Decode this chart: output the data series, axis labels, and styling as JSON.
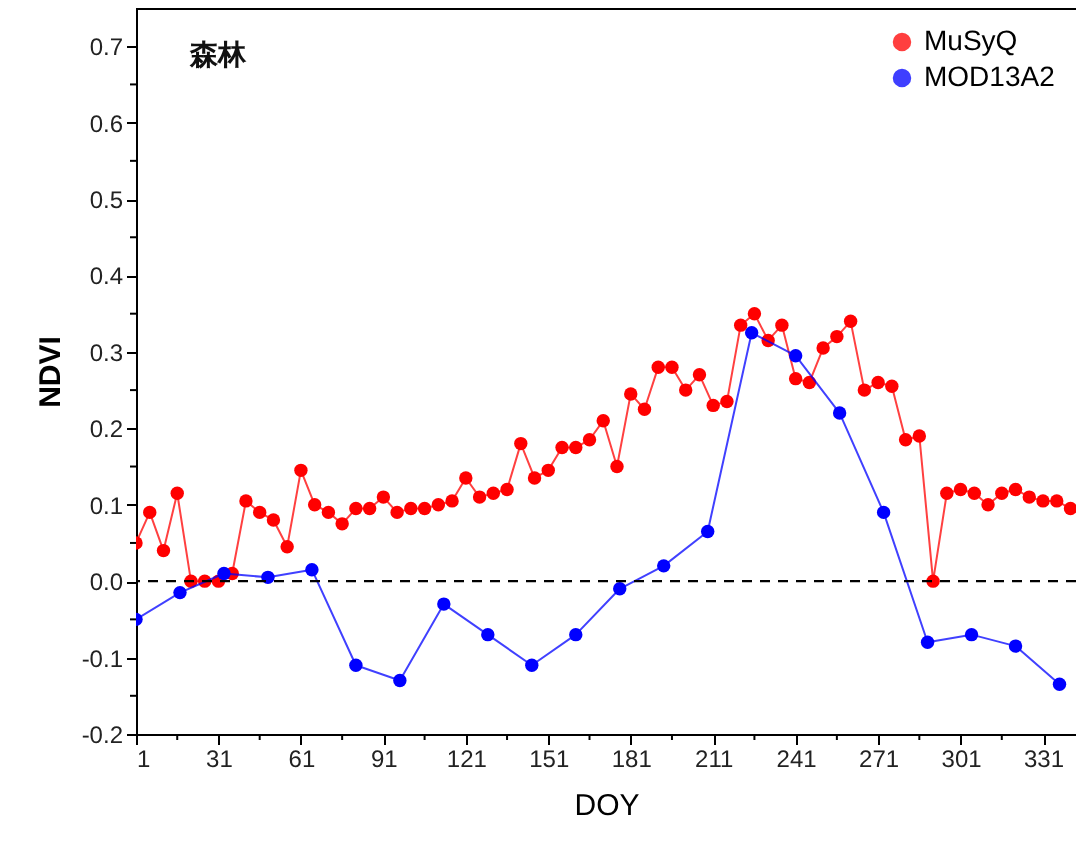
{
  "chart_data": {
    "type": "line",
    "xlabel": "DOY",
    "ylabel": "NDVI",
    "annotations": [
      "森林"
    ],
    "xlim": [
      1,
      343
    ],
    "xticks": [
      1,
      {
        "value": 16,
        "label": null
      },
      31,
      {
        "value": 46,
        "label": null
      },
      61,
      {
        "value": 76,
        "label": null
      },
      91,
      {
        "value": 106,
        "label": null
      },
      121,
      {
        "value": 136,
        "label": null
      },
      151,
      {
        "value": 166,
        "label": null
      },
      181,
      {
        "value": 196,
        "label": null
      },
      211,
      {
        "value": 226,
        "label": null
      },
      241,
      {
        "value": 256,
        "label": null
      },
      271,
      {
        "value": 286,
        "label": null
      },
      301,
      {
        "value": 316,
        "label": null
      },
      331
    ],
    "ylim": [
      -0.2,
      0.75
    ],
    "yticks": [
      -0.2,
      {
        "value": -0.15,
        "label": null
      },
      -0.1,
      {
        "value": -0.05,
        "label": null
      },
      {
        "value": 0,
        "label": "0.0"
      },
      {
        "value": 0.05,
        "label": null
      },
      0.1,
      {
        "value": 0.15,
        "label": null
      },
      0.2,
      {
        "value": 0.25,
        "label": null
      },
      0.3,
      {
        "value": 0.35,
        "label": null
      },
      0.4,
      {
        "value": 0.45,
        "label": null
      },
      0.5,
      {
        "value": 0.55,
        "label": null
      },
      0.6,
      {
        "value": 0.65,
        "label": null
      },
      0.7
    ],
    "legend": "top right",
    "marker": "circle",
    "line_style": "solid",
    "ref_lines": [
      {
        "axis": "y",
        "value": 0,
        "color": "#000000",
        "line_style": "dashed"
      }
    ],
    "series": [
      {
        "name": "MuSyQ",
        "color": "#ff0000",
        "x": [
          1,
          6,
          11,
          16,
          21,
          26,
          31,
          36,
          41,
          46,
          51,
          56,
          61,
          66,
          71,
          76,
          81,
          86,
          91,
          96,
          101,
          106,
          111,
          116,
          121,
          126,
          131,
          136,
          141,
          146,
          151,
          156,
          161,
          166,
          171,
          176,
          181,
          186,
          191,
          196,
          201,
          206,
          211,
          216,
          221,
          226,
          231,
          236,
          241,
          246,
          251,
          256,
          261,
          266,
          271,
          276,
          281,
          286,
          291,
          296,
          301,
          306,
          311,
          316,
          321,
          326,
          331,
          336,
          341
        ],
        "values": [
          0.05,
          0.09,
          0.04,
          0.115,
          0.0,
          0.0,
          0.0,
          0.01,
          0.105,
          0.09,
          0.08,
          0.045,
          0.145,
          0.1,
          0.09,
          0.075,
          0.095,
          0.095,
          0.11,
          0.09,
          0.095,
          0.095,
          0.1,
          0.105,
          0.135,
          0.11,
          0.115,
          0.12,
          0.18,
          0.135,
          0.145,
          0.175,
          0.175,
          0.185,
          0.21,
          0.15,
          0.245,
          0.225,
          0.28,
          0.28,
          0.25,
          0.27,
          0.23,
          0.235,
          0.335,
          0.35,
          0.315,
          0.335,
          0.265,
          0.26,
          0.305,
          0.32,
          0.34,
          0.25,
          0.26,
          0.255,
          0.185,
          0.19,
          0.0,
          0.115,
          0.12,
          0.115,
          0.1,
          0.115,
          0.12,
          0.11,
          0.105,
          0.105,
          0.095
        ]
      },
      {
        "name": "MOD13A2",
        "color": "#0000ff",
        "x": [
          1,
          17,
          33,
          49,
          65,
          81,
          97,
          113,
          129,
          145,
          161,
          177,
          193,
          209,
          225,
          241,
          257,
          273,
          289,
          305,
          321,
          337
        ],
        "values": [
          -0.05,
          -0.015,
          0.01,
          0.005,
          0.015,
          -0.11,
          -0.13,
          -0.03,
          -0.07,
          -0.11,
          -0.07,
          -0.01,
          0.02,
          0.065,
          0.325,
          0.295,
          0.22,
          0.09,
          -0.08,
          -0.07,
          -0.085,
          -0.135
        ]
      }
    ]
  }
}
